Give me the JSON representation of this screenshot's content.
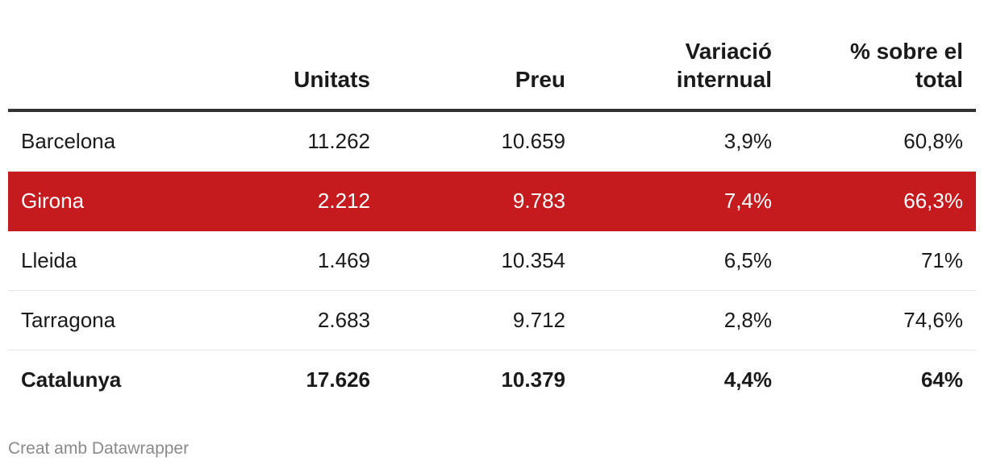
{
  "chart_data": {
    "type": "table",
    "columns": [
      "",
      "Unitats",
      "Preu",
      "Variació internual",
      "% sobre el total"
    ],
    "rows": [
      {
        "name": "Barcelona",
        "unitats": "11.262",
        "preu": "10.659",
        "variacio": "3,9%",
        "percent": "60,8%",
        "highlight": false,
        "total": false
      },
      {
        "name": "Girona",
        "unitats": "2.212",
        "preu": "9.783",
        "variacio": "7,4%",
        "percent": "66,3%",
        "highlight": true,
        "total": false
      },
      {
        "name": "Lleida",
        "unitats": "1.469",
        "preu": "10.354",
        "variacio": "6,5%",
        "percent": "71%",
        "highlight": false,
        "total": false
      },
      {
        "name": "Tarragona",
        "unitats": "2.683",
        "preu": "9.712",
        "variacio": "2,8%",
        "percent": "74,6%",
        "highlight": false,
        "total": false
      },
      {
        "name": "Catalunya",
        "unitats": "17.626",
        "preu": "10.379",
        "variacio": "4,4%",
        "percent": "64%",
        "highlight": false,
        "total": true
      }
    ],
    "highlight_color": "#c51b1f"
  },
  "header": {
    "col1": "Unitats",
    "col2": "Preu",
    "col3_line1": "Variació",
    "col3_line2": "internual",
    "col4_line1": "% sobre el",
    "col4_line2": "total"
  },
  "footer": {
    "credit": "Creat amb Datawrapper"
  }
}
